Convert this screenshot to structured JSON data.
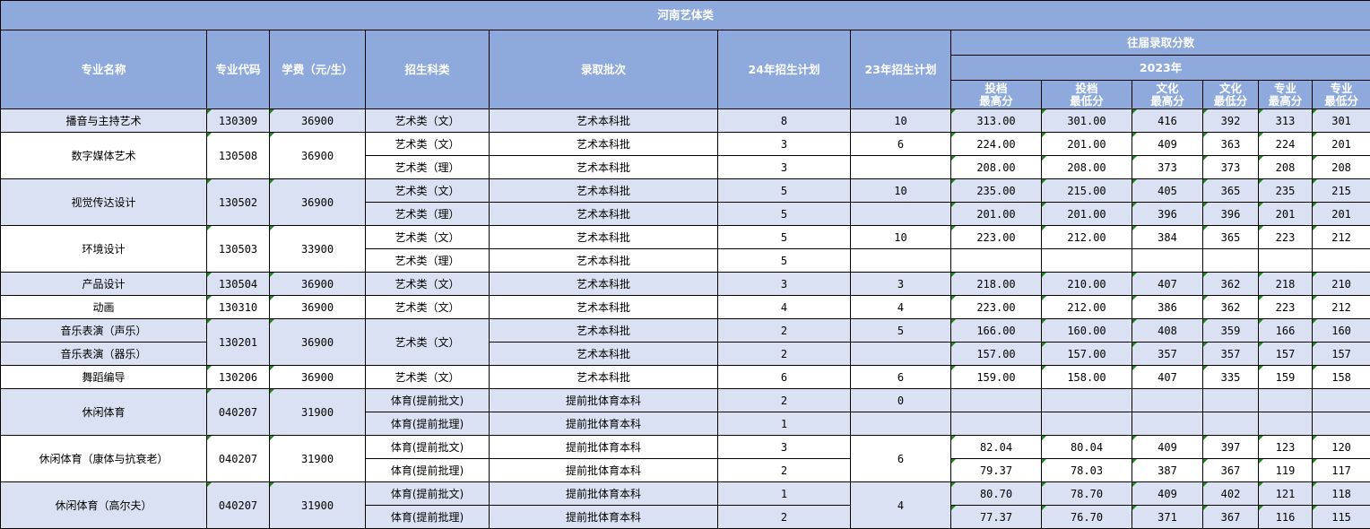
{
  "title": "河南艺体类",
  "headers": {
    "major": "专业名称",
    "code": "专业代码",
    "fee": "学费（元/生）",
    "category": "招生科类",
    "batch": "录取批次",
    "plan24": "24年招生计划",
    "plan23": "23年招生计划",
    "history": "往届录取分数",
    "year": "2023年",
    "score_cols": [
      [
        "投档",
        "最高分"
      ],
      [
        "投档",
        "最低分"
      ],
      [
        "文化",
        "最高分"
      ],
      [
        "文化",
        "最低分"
      ],
      [
        "专业",
        "最高分"
      ],
      [
        "专业",
        "最低分"
      ]
    ]
  },
  "colors": {
    "header": "#8eaadc",
    "row_alt": "#d9e1f2",
    "row": "#ffffff",
    "marker": "#1a8a1a"
  },
  "groups": [
    {
      "majors": [
        "播音与主持艺术"
      ],
      "code": "130309",
      "fee": "36900",
      "rows": [
        {
          "category": "艺术类（文）",
          "batch": "艺术本科批",
          "plan24": "8",
          "plan23": "10",
          "scores": [
            "313.00",
            "301.00",
            "416",
            "392",
            "313",
            "301"
          ]
        }
      ]
    },
    {
      "majors": [
        "数字媒体艺术"
      ],
      "code": "130508",
      "fee": "36900",
      "rows": [
        {
          "category": "艺术类（文）",
          "batch": "艺术本科批",
          "plan24": "3",
          "plan23": "6",
          "scores": [
            "224.00",
            "201.00",
            "409",
            "363",
            "224",
            "201"
          ]
        },
        {
          "category": "艺术类（理）",
          "batch": "艺术本科批",
          "plan24": "3",
          "plan23": "",
          "scores": [
            "208.00",
            "208.00",
            "373",
            "373",
            "208",
            "208"
          ]
        }
      ]
    },
    {
      "majors": [
        "视觉传达设计"
      ],
      "code": "130502",
      "fee": "36900",
      "rows": [
        {
          "category": "艺术类（文）",
          "batch": "艺术本科批",
          "plan24": "5",
          "plan23": "10",
          "scores": [
            "235.00",
            "215.00",
            "405",
            "365",
            "235",
            "215"
          ]
        },
        {
          "category": "艺术类（理）",
          "batch": "艺术本科批",
          "plan24": "5",
          "plan23": "",
          "scores": [
            "201.00",
            "201.00",
            "396",
            "396",
            "201",
            "201"
          ]
        }
      ]
    },
    {
      "majors": [
        "环境设计"
      ],
      "code": "130503",
      "fee": "33900",
      "rows": [
        {
          "category": "艺术类（文）",
          "batch": "艺术本科批",
          "plan24": "5",
          "plan23": "10",
          "scores": [
            "223.00",
            "212.00",
            "384",
            "365",
            "223",
            "212"
          ]
        },
        {
          "category": "艺术类（理）",
          "batch": "艺术本科批",
          "plan24": "5",
          "plan23": "",
          "scores": [
            "",
            "",
            "",
            "",
            "",
            ""
          ]
        }
      ]
    },
    {
      "majors": [
        "产品设计"
      ],
      "code": "130504",
      "fee": "36900",
      "rows": [
        {
          "category": "艺术类（文）",
          "batch": "艺术本科批",
          "plan24": "3",
          "plan23": "3",
          "scores": [
            "218.00",
            "210.00",
            "407",
            "362",
            "218",
            "210"
          ]
        }
      ]
    },
    {
      "majors": [
        "动画"
      ],
      "code": "130310",
      "fee": "36900",
      "rows": [
        {
          "category": "艺术类（文）",
          "batch": "艺术本科批",
          "plan24": "4",
          "plan23": "4",
          "scores": [
            "223.00",
            "212.00",
            "386",
            "362",
            "223",
            "212"
          ]
        }
      ]
    },
    {
      "majors": [
        "音乐表演（声乐）",
        "音乐表演（器乐）"
      ],
      "code": "130201",
      "fee": "36900",
      "category": "艺术类（文）",
      "rows": [
        {
          "batch": "艺术本科批",
          "plan24": "2",
          "plan23": "5",
          "scores": [
            "166.00",
            "160.00",
            "408",
            "359",
            "166",
            "160"
          ]
        },
        {
          "batch": "艺术本科批",
          "plan24": "2",
          "plan23": "",
          "scores": [
            "157.00",
            "157.00",
            "357",
            "357",
            "157",
            "157"
          ]
        }
      ]
    },
    {
      "majors": [
        "舞蹈编导"
      ],
      "code": "130206",
      "fee": "36900",
      "rows": [
        {
          "category": "艺术类（文）",
          "batch": "艺术本科批",
          "plan24": "6",
          "plan23": "6",
          "scores": [
            "159.00",
            "158.00",
            "407",
            "335",
            "159",
            "158"
          ]
        }
      ]
    },
    {
      "majors": [
        "休闲体育"
      ],
      "code": "040207",
      "fee": "31900",
      "rows": [
        {
          "category": "体育(提前批文)",
          "batch": "提前批体育本科",
          "plan24": "2",
          "plan23": "0",
          "scores": [
            "",
            "",
            "",
            "",
            "",
            ""
          ]
        },
        {
          "category": "体育(提前批理)",
          "batch": "提前批体育本科",
          "plan24": "1",
          "plan23": "",
          "scores": [
            "",
            "",
            "",
            "",
            "",
            ""
          ]
        }
      ]
    },
    {
      "majors": [
        "休闲体育（康体与抗衰老）"
      ],
      "code": "040207",
      "fee": "31900",
      "plan23": "6",
      "rows": [
        {
          "category": "体育(提前批文)",
          "batch": "提前批体育本科",
          "plan24": "3",
          "scores": [
            "82.04",
            "80.04",
            "409",
            "397",
            "123",
            "120"
          ]
        },
        {
          "category": "体育(提前批理)",
          "batch": "提前批体育本科",
          "plan24": "2",
          "scores": [
            "79.37",
            "78.03",
            "387",
            "367",
            "119",
            "117"
          ]
        }
      ]
    },
    {
      "majors": [
        "休闲体育（高尔夫）"
      ],
      "code": "040207",
      "fee": "31900",
      "plan23": "4",
      "rows": [
        {
          "category": "体育(提前批文)",
          "batch": "提前批体育本科",
          "plan24": "1",
          "scores": [
            "80.70",
            "78.70",
            "409",
            "402",
            "121",
            "118"
          ]
        },
        {
          "category": "体育(提前批理)",
          "batch": "提前批体育本科",
          "plan24": "2",
          "scores": [
            "77.37",
            "76.70",
            "371",
            "367",
            "116",
            "115"
          ]
        }
      ]
    }
  ]
}
